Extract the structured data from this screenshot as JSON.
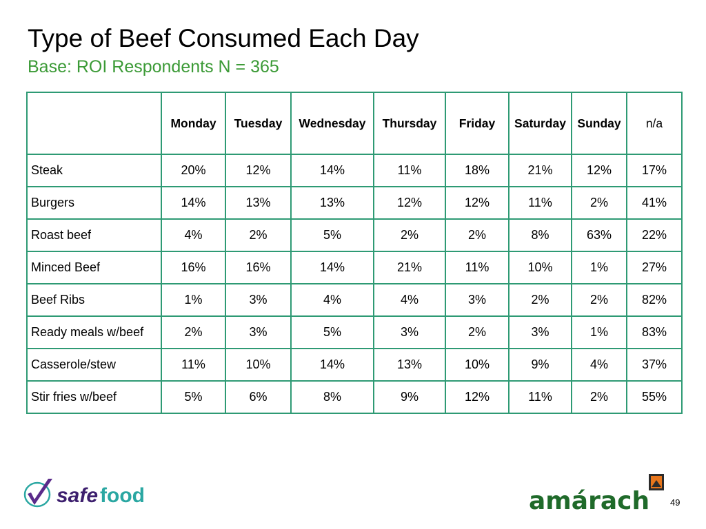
{
  "slide": {
    "title": "Type of Beef Consumed Each Day",
    "subtitle": "Base: ROI Respondents N = 365",
    "page_number": "49"
  },
  "table": {
    "columns": [
      "",
      "Monday",
      "Tuesday",
      "Wednesday",
      "Thursday",
      "Friday",
      "Saturday",
      "Sunday",
      "n/a"
    ],
    "rows": [
      {
        "label": "Steak",
        "values": [
          "20%",
          "12%",
          "14%",
          "11%",
          "18%",
          "21%",
          "12%",
          "17%"
        ]
      },
      {
        "label": "Burgers",
        "values": [
          "14%",
          "13%",
          "13%",
          "12%",
          "12%",
          "11%",
          "2%",
          "41%"
        ]
      },
      {
        "label": "Roast beef",
        "values": [
          "4%",
          "2%",
          "5%",
          "2%",
          "2%",
          "8%",
          "63%",
          "22%"
        ]
      },
      {
        "label": "Minced Beef",
        "values": [
          "16%",
          "16%",
          "14%",
          "21%",
          "11%",
          "10%",
          "1%",
          "27%"
        ]
      },
      {
        "label": "Beef Ribs",
        "values": [
          "1%",
          "3%",
          "4%",
          "4%",
          "3%",
          "2%",
          "2%",
          "82%"
        ]
      },
      {
        "label": "Ready meals w/beef",
        "values": [
          "2%",
          "3%",
          "5%",
          "3%",
          "2%",
          "3%",
          "1%",
          "83%"
        ]
      },
      {
        "label": "Casserole/stew",
        "values": [
          "11%",
          "10%",
          "14%",
          "13%",
          "10%",
          "9%",
          "4%",
          "37%"
        ]
      },
      {
        "label": "Stir fries w/beef",
        "values": [
          "5%",
          "6%",
          "8%",
          "9%",
          "12%",
          "11%",
          "2%",
          "55%"
        ]
      }
    ]
  },
  "logos": {
    "safefood": {
      "text_safe": "safe",
      "text_food": "food",
      "colors": {
        "safe": "#3d1f6e",
        "food": "#2aa7a2",
        "check": "#5a2b8a"
      }
    },
    "amarach": {
      "text": "amárach",
      "colors": {
        "text": "#1f6a2a",
        "icon_outer": "#2b2b2b",
        "icon_inner": "#e8761c"
      }
    }
  },
  "colors": {
    "title": "#000000",
    "subtitle": "#3b9a36",
    "table_border": "#2e9a74"
  }
}
